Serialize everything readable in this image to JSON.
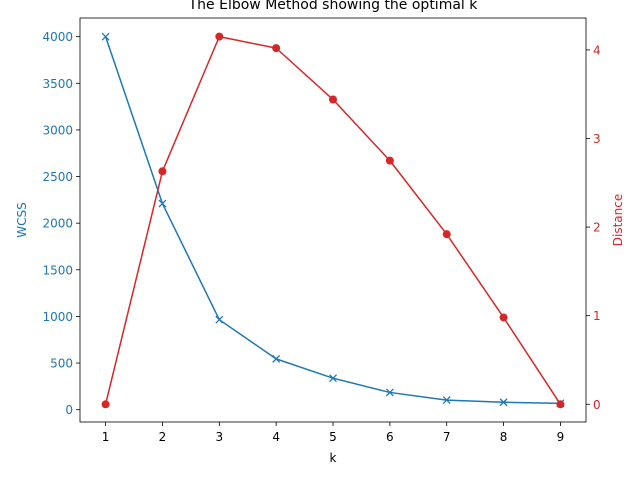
{
  "chart_data": {
    "type": "line",
    "title": "The Elbow Method showing the optimal k",
    "xlabel": "k",
    "x": [
      1,
      2,
      3,
      4,
      5,
      6,
      7,
      8,
      9
    ],
    "xticks": [
      "1",
      "2",
      "3",
      "4",
      "5",
      "6",
      "7",
      "8",
      "9"
    ],
    "xlim": [
      0.55,
      9.45
    ],
    "grid": false,
    "legend": "none",
    "series": [
      {
        "axis": "left",
        "marker": "x",
        "color": "#1f77b4",
        "values": [
          4000,
          2210,
          965,
          545,
          338,
          185,
          103,
          80,
          68
        ]
      },
      {
        "axis": "right",
        "marker": "circle",
        "color": "#d62728",
        "values": [
          0.0,
          2.63,
          4.15,
          4.02,
          3.44,
          2.75,
          1.92,
          0.98,
          0.0
        ]
      }
    ]
  },
  "axes": {
    "left": {
      "label": "WCSS",
      "color": "#1f77b4",
      "ylim": [
        -132,
        4200
      ],
      "ticks": [
        0,
        500,
        1000,
        1500,
        2000,
        2500,
        3000,
        3500,
        4000
      ],
      "tick_labels": [
        "0",
        "500",
        "1000",
        "1500",
        "2000",
        "2500",
        "3000",
        "3500",
        "4000"
      ]
    },
    "right": {
      "label": "Distance",
      "color": "#d62728",
      "ylim": [
        -0.2,
        4.36
      ],
      "ticks": [
        0,
        1,
        2,
        3,
        4
      ],
      "tick_labels": [
        "0",
        "1",
        "2",
        "3",
        "4"
      ]
    }
  }
}
